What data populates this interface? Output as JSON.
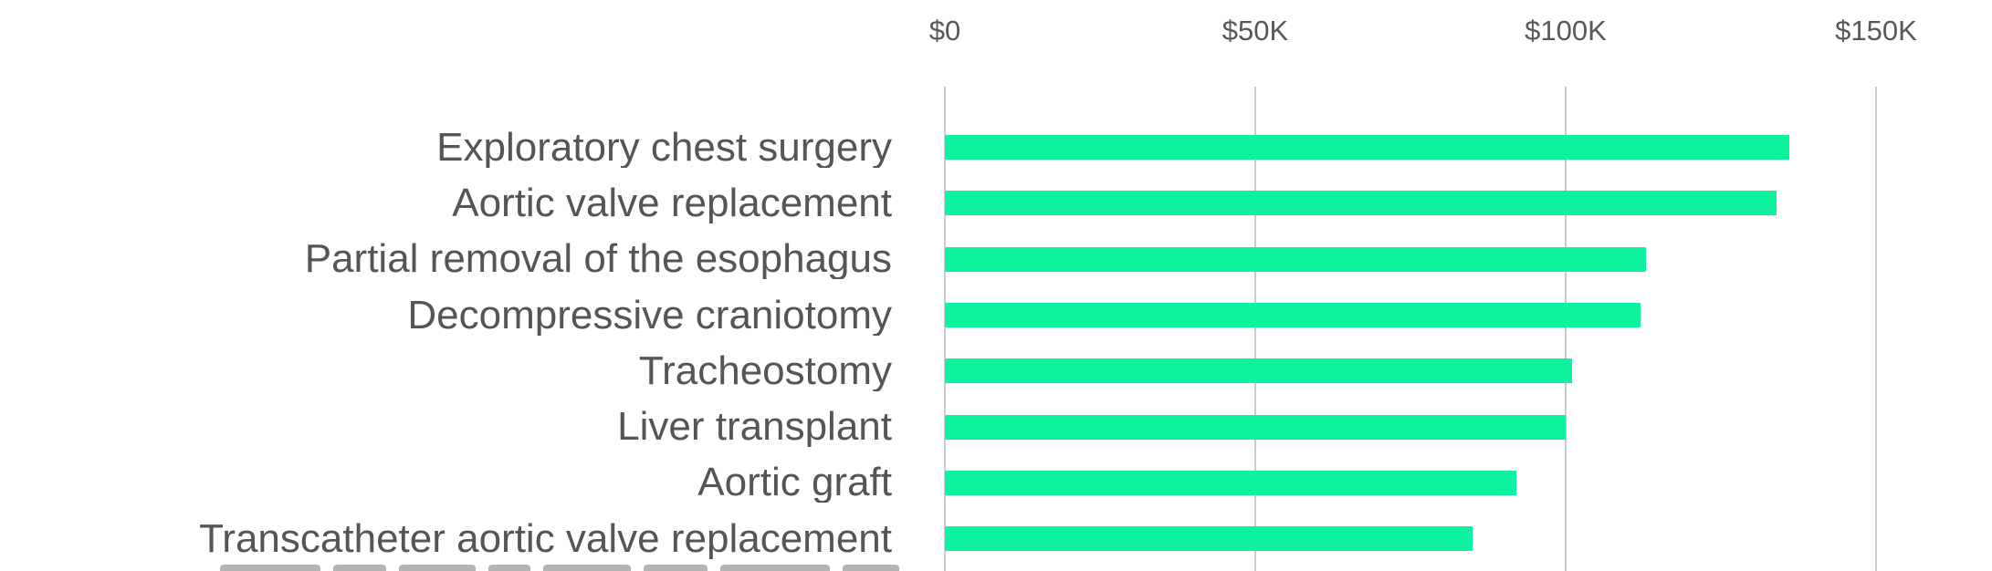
{
  "chart_data": {
    "type": "bar",
    "orientation": "horizontal",
    "title": "",
    "categories": [
      "Exploratory chest surgery",
      "Aortic valve replacement",
      "Partial removal of the esophagus",
      "Decompressive craniotomy",
      "Tracheostomy",
      "Liver transplant",
      "Aortic graft",
      "Transcatheter aortic valve replacement"
    ],
    "values_usd_thousands": [
      136,
      134,
      113,
      112,
      101,
      100,
      92,
      85
    ],
    "x_axis": {
      "position": "top",
      "tick_labels": [
        "$0",
        "$50K",
        "$100K",
        "$150K"
      ],
      "tick_values_thousands": [
        0,
        50,
        100,
        150
      ],
      "visible_max_thousands": 168
    },
    "grid": "vertical-gridlines-on",
    "legend": "none",
    "partial_ninth_row_label_clipped_at_bottom": true,
    "colors": {
      "bar": "#0df29c",
      "gridline": "#cccccc",
      "category_text": "#555557",
      "tick_text": "#58585a",
      "background": "#ffffff"
    }
  }
}
